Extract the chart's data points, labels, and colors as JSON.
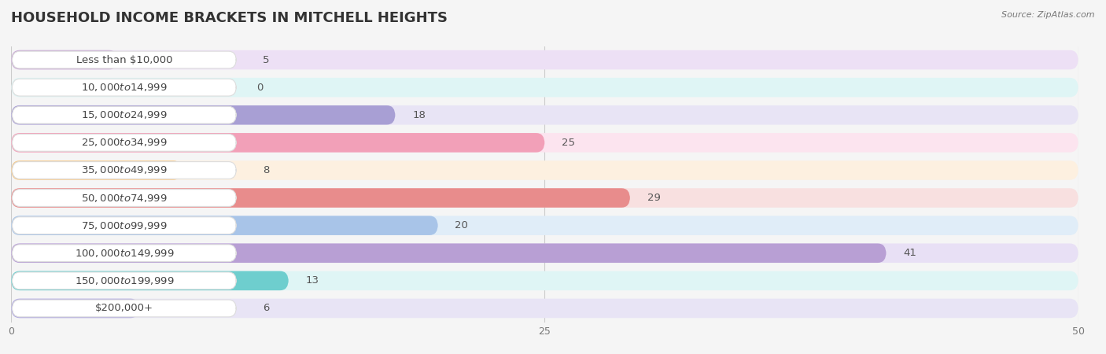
{
  "title": "HOUSEHOLD INCOME BRACKETS IN MITCHELL HEIGHTS",
  "source": "Source: ZipAtlas.com",
  "categories": [
    "Less than $10,000",
    "$10,000 to $14,999",
    "$15,000 to $24,999",
    "$25,000 to $34,999",
    "$35,000 to $49,999",
    "$50,000 to $74,999",
    "$75,000 to $99,999",
    "$100,000 to $149,999",
    "$150,000 to $199,999",
    "$200,000+"
  ],
  "values": [
    5,
    0,
    18,
    25,
    8,
    29,
    20,
    41,
    13,
    6
  ],
  "bar_colors": [
    "#c9aad4",
    "#7ececa",
    "#a89fd4",
    "#f2a0b8",
    "#f5c98a",
    "#e88c8c",
    "#a8c4e8",
    "#b89fd4",
    "#6ecece",
    "#b0a8e0"
  ],
  "bg_colors": [
    "#ede0f5",
    "#dff5f5",
    "#e8e4f5",
    "#fce4ef",
    "#fdf0e0",
    "#f8e0e0",
    "#e0edf8",
    "#e8e0f5",
    "#dff5f5",
    "#e8e4f5"
  ],
  "xlim": [
    0,
    50
  ],
  "xticks": [
    0,
    25,
    50
  ],
  "background_color": "#f5f5f5",
  "title_fontsize": 13,
  "label_fontsize": 9.5,
  "value_fontsize": 9.5
}
